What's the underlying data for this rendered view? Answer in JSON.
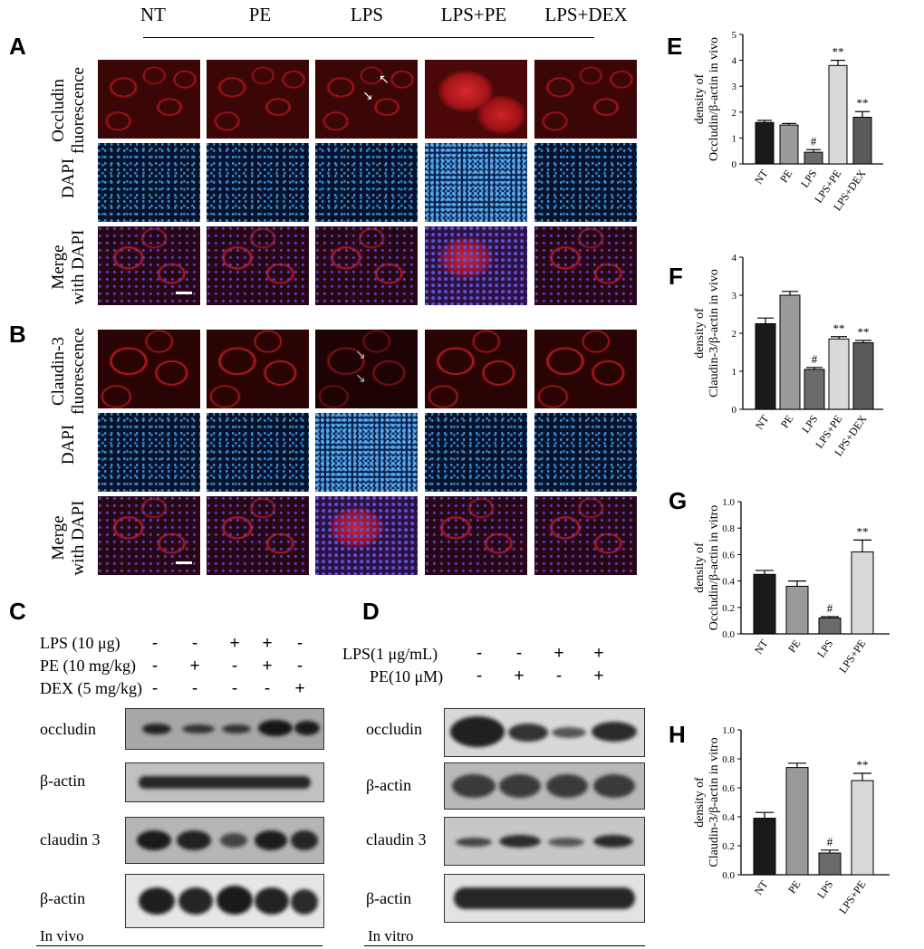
{
  "panels": {
    "A": "A",
    "B": "B",
    "C": "C",
    "D": "D",
    "E": "E",
    "F": "F",
    "G": "G",
    "H": "H"
  },
  "columns": [
    "NT",
    "PE",
    "LPS",
    "LPS+PE",
    "LPS+DEX"
  ],
  "rows_A": [
    {
      "line1": "Occludin",
      "line2": "fluorescence"
    },
    {
      "line1": "DAPI",
      "line2": ""
    },
    {
      "line1": "Merge",
      "line2": "with DAPI"
    }
  ],
  "rows_B": [
    {
      "line1": "Claudin-3",
      "line2": "fluorescence"
    },
    {
      "line1": "DAPI",
      "line2": ""
    },
    {
      "line1": "Merge",
      "line2": "with DAPI"
    }
  ],
  "blot_C": {
    "treatments": [
      "LPS (10 μg)",
      "PE (10 mg/kg)",
      "DEX (5 mg/kg)"
    ],
    "signs": [
      [
        "-",
        "-",
        "+",
        "+",
        "-"
      ],
      [
        "-",
        "+",
        "-",
        "+",
        "-"
      ],
      [
        "-",
        "-",
        "-",
        "-",
        "+"
      ]
    ],
    "bands": [
      "occludin",
      "β-actin",
      "claudin 3",
      "β-actin"
    ],
    "footer": "In vivo"
  },
  "blot_D": {
    "treatments": [
      "LPS(1 μg/mL)",
      "PE(10 μM)"
    ],
    "signs": [
      [
        "-",
        "-",
        "+",
        "+"
      ],
      [
        "-",
        "+",
        "-",
        "+"
      ]
    ],
    "bands": [
      "occludin",
      "β-actin",
      "claudin 3",
      "β-actin"
    ],
    "footer": "In vitro"
  },
  "chart_data": [
    {
      "panel": "E",
      "type": "bar",
      "categories": [
        "NT",
        "PE",
        "LPS",
        "LPS+PE",
        "LPS+DEX"
      ],
      "values": [
        1.6,
        1.5,
        0.45,
        3.8,
        1.8
      ],
      "errors": [
        0.08,
        0.06,
        0.1,
        0.2,
        0.22
      ],
      "annotations": [
        "",
        "",
        "#",
        "**",
        "**"
      ],
      "ylabel_line1": "density of",
      "ylabel_line2": "Occludin/β-actin in vivo",
      "ylim": [
        0,
        5
      ],
      "yticks": [
        "0",
        "1",
        "2",
        "3",
        "4",
        "5"
      ],
      "colors": [
        "#1a1a1a",
        "#9a9a9a",
        "#6b6b6b",
        "#d9d9d9",
        "#5a5a5a"
      ]
    },
    {
      "panel": "F",
      "type": "bar",
      "categories": [
        "NT",
        "PE",
        "LPS",
        "LPS+PE",
        "LPS+DEX"
      ],
      "values": [
        2.25,
        3.0,
        1.05,
        1.85,
        1.75
      ],
      "errors": [
        0.15,
        0.1,
        0.05,
        0.06,
        0.06
      ],
      "annotations": [
        "",
        "",
        "#",
        "**",
        "**"
      ],
      "ylabel_line1": "density of",
      "ylabel_line2": "Claudin-3/β-actin in vivo",
      "ylim": [
        0,
        4
      ],
      "yticks": [
        "0",
        "1",
        "2",
        "3",
        "4"
      ],
      "colors": [
        "#1a1a1a",
        "#9a9a9a",
        "#6b6b6b",
        "#d9d9d9",
        "#5a5a5a"
      ]
    },
    {
      "panel": "G",
      "type": "bar",
      "categories": [
        "NT",
        "PE",
        "LPS",
        "LPS+PE"
      ],
      "values": [
        0.45,
        0.36,
        0.12,
        0.62
      ],
      "errors": [
        0.03,
        0.04,
        0.01,
        0.09
      ],
      "annotations": [
        "",
        "",
        "#",
        "**"
      ],
      "ylabel_line1": "density of",
      "ylabel_line2": "Occludin/β-actin in  vitro",
      "ylim": [
        0,
        1.0
      ],
      "yticks": [
        "0.0",
        "0.2",
        "0.4",
        "0.6",
        "0.8",
        "1.0"
      ],
      "colors": [
        "#1a1a1a",
        "#9a9a9a",
        "#6b6b6b",
        "#d9d9d9"
      ]
    },
    {
      "panel": "H",
      "type": "bar",
      "categories": [
        "NT",
        "PE",
        "LPS",
        "LPS+PE"
      ],
      "values": [
        0.39,
        0.74,
        0.15,
        0.65
      ],
      "errors": [
        0.04,
        0.03,
        0.02,
        0.05
      ],
      "annotations": [
        "",
        "",
        "#",
        "**"
      ],
      "ylabel_line1": "density of",
      "ylabel_line2": "Claudin-3/β-actin in vitro",
      "ylim": [
        0,
        1.0
      ],
      "yticks": [
        "0.0",
        "0.2",
        "0.4",
        "0.6",
        "0.8",
        "1.0"
      ],
      "colors": [
        "#1a1a1a",
        "#9a9a9a",
        "#6b6b6b",
        "#d9d9d9"
      ]
    }
  ]
}
